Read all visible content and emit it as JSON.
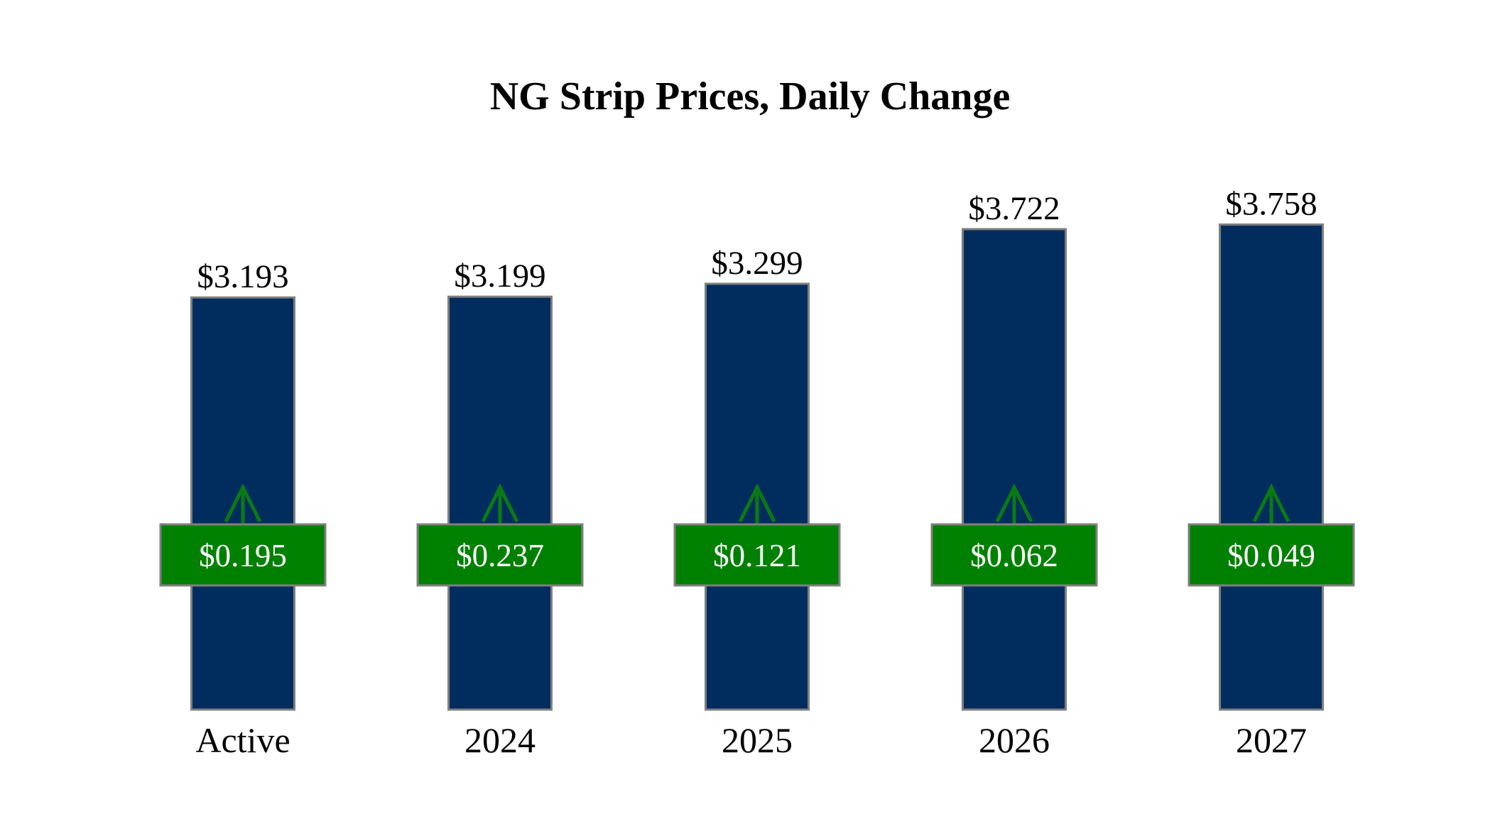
{
  "chart_data": {
    "type": "bar",
    "title": "NG Strip Prices, Daily Change",
    "categories": [
      "Active",
      "2024",
      "2025",
      "2026",
      "2027"
    ],
    "values": [
      3.193,
      3.199,
      3.299,
      3.722,
      3.758
    ],
    "value_labels": [
      "$3.193",
      "$3.199",
      "$3.299",
      "$3.722",
      "$3.758"
    ],
    "changes": [
      0.195,
      0.237,
      0.121,
      0.062,
      0.049
    ],
    "change_labels": [
      "$0.195",
      "$0.237",
      "$0.121",
      "$0.062",
      "$0.049"
    ],
    "change_direction": [
      "up",
      "up",
      "up",
      "up",
      "up"
    ],
    "grid": false,
    "legend": "none",
    "colors": {
      "bar": "#002D5E",
      "bar_border": "#7F7F7F",
      "change_box": "#008000",
      "change_box_border": "#7F7F7F",
      "arrow": "#0A7A14"
    }
  }
}
